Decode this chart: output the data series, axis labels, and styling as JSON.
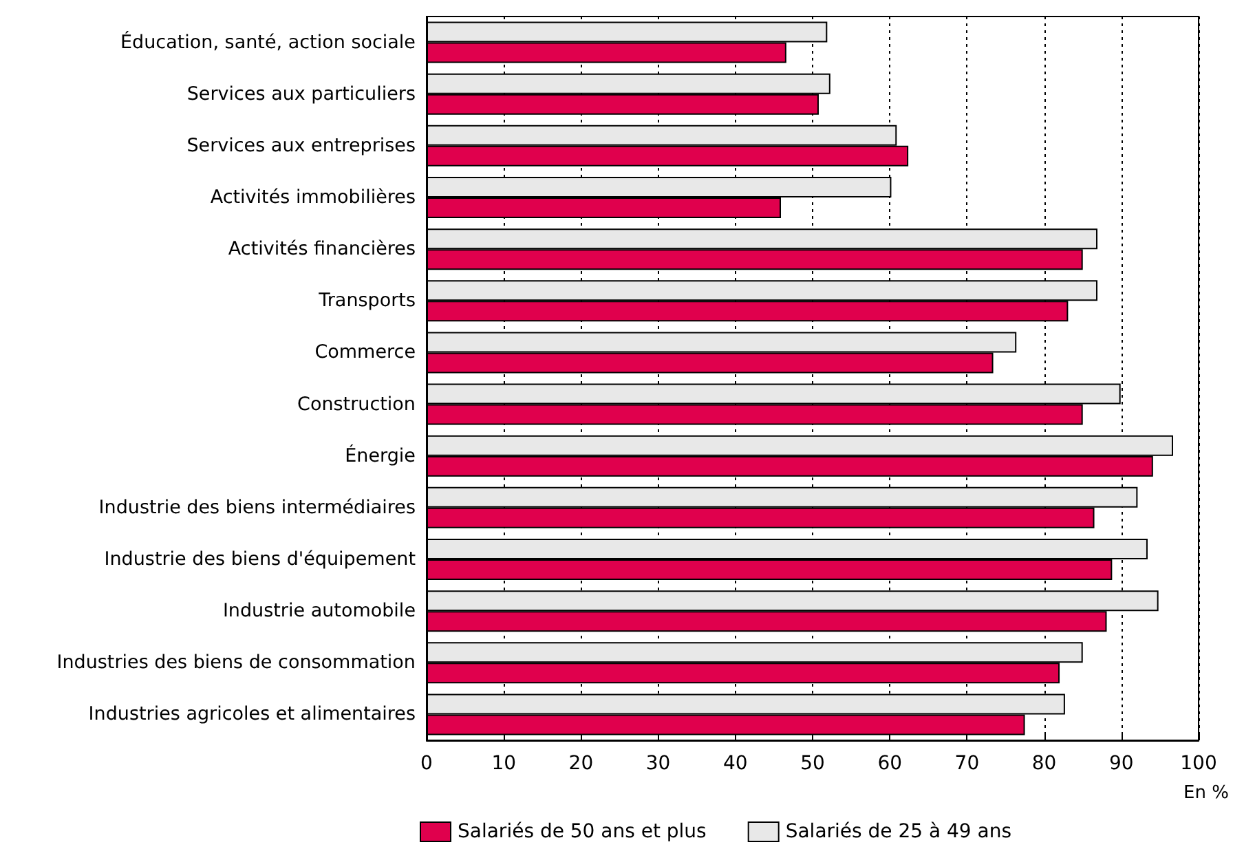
{
  "chart_data": {
    "type": "bar",
    "orientation": "horizontal",
    "xlabel": "En %",
    "categories": [
      "Éducation, santé, action sociale",
      "Services aux particuliers",
      "Services aux entreprises",
      "Activités immobilières",
      "Activités financières",
      "Transports",
      "Commerce",
      "Construction",
      "Énergie",
      "Industrie des biens intermédiaires",
      "Industrie des biens d'équipement",
      "Industrie automobile",
      "Industries des biens de consommation",
      "Industries agricoles et alimentaires"
    ],
    "series": [
      {
        "name": "Salariés de 50 ans et plus",
        "color": "#e0004d",
        "values": [
          46.6,
          50.8,
          62.4,
          45.9,
          85.0,
          83.1,
          73.4,
          85.0,
          94.1,
          86.5,
          88.8,
          88.1,
          82.0,
          77.5
        ]
      },
      {
        "name": "Salariés de 25 à 49 ans",
        "color": "#e8e8e8",
        "values": [
          51.9,
          52.3,
          60.9,
          60.2,
          86.9,
          86.9,
          76.4,
          89.9,
          96.7,
          92.1,
          93.4,
          94.8,
          85.0,
          82.7
        ]
      }
    ],
    "xlim": [
      0,
      100
    ],
    "xticks": [
      0,
      10,
      20,
      30,
      40,
      50,
      60,
      70,
      80,
      90,
      100
    ],
    "grid": "x",
    "legend": "bottom"
  }
}
